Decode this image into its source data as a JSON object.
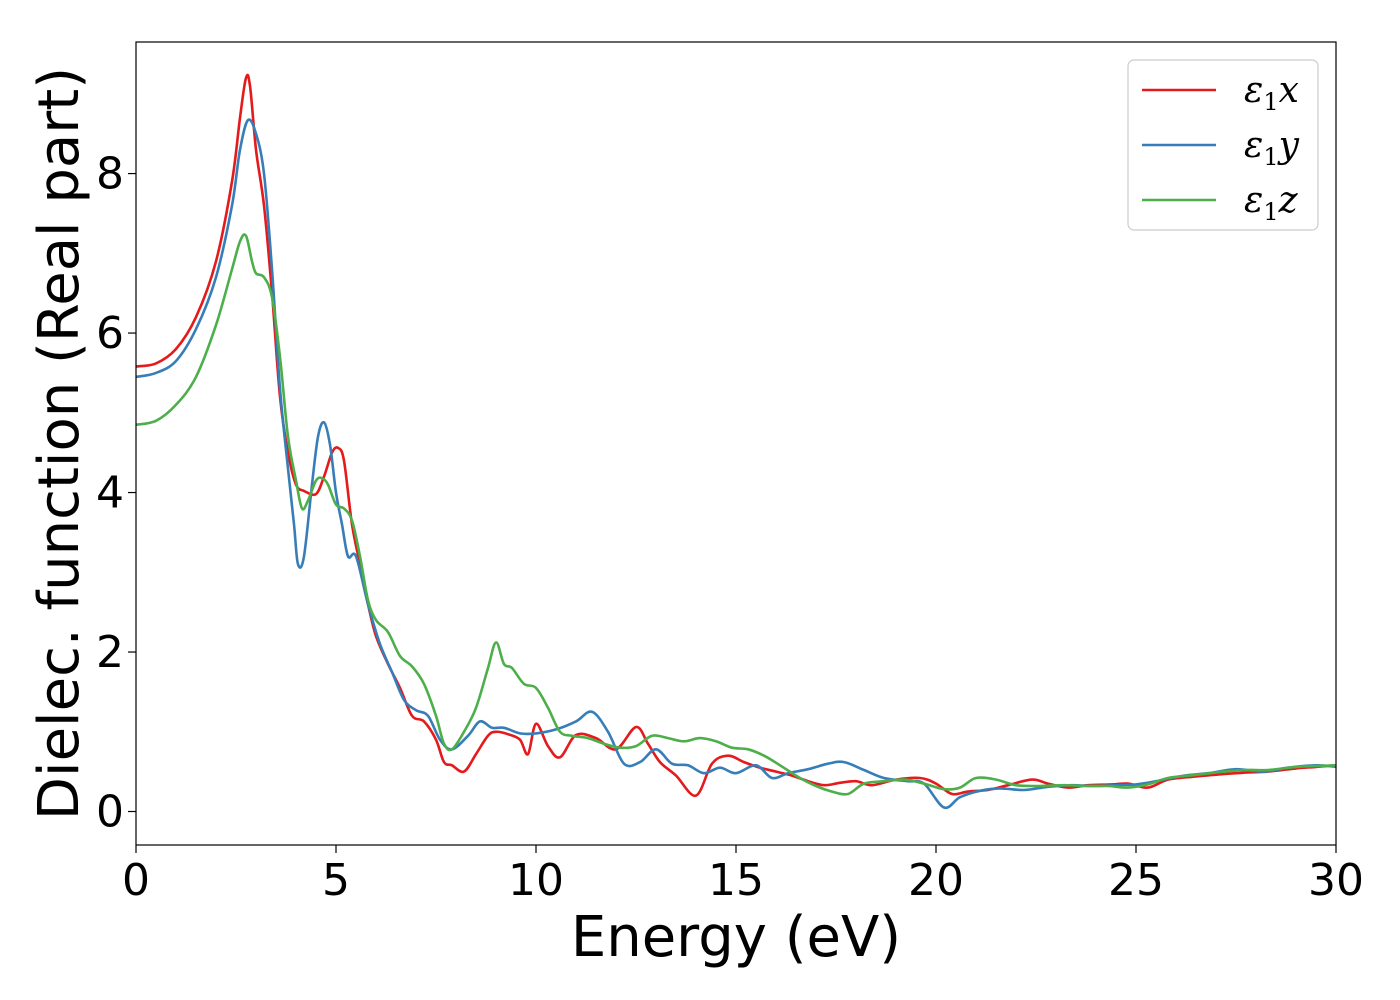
{
  "chart_data": {
    "type": "line",
    "xlabel": "Energy (eV)",
    "ylabel": "Dielec. function (Real part)",
    "xlim": [
      0,
      30
    ],
    "ylim": [
      -0.42,
      9.65
    ],
    "xticks": [
      0,
      5,
      10,
      15,
      20,
      25,
      30
    ],
    "yticks": [
      0,
      2,
      4,
      6,
      8
    ],
    "grid": false,
    "legend_position": "top-right",
    "series": [
      {
        "name": "ε1x",
        "legend_base": "ε",
        "legend_sub": "1",
        "legend_tail": "x",
        "color": "#e41a1c",
        "points": [
          [
            0,
            5.58
          ],
          [
            0.5,
            5.62
          ],
          [
            1,
            5.8
          ],
          [
            1.5,
            6.2
          ],
          [
            2,
            6.9
          ],
          [
            2.4,
            7.9
          ],
          [
            2.6,
            8.7
          ],
          [
            2.75,
            9.2
          ],
          [
            2.85,
            9.1
          ],
          [
            3.0,
            8.3
          ],
          [
            3.2,
            7.6
          ],
          [
            3.4,
            6.5
          ],
          [
            3.6,
            5.2
          ],
          [
            3.8,
            4.5
          ],
          [
            4.0,
            4.1
          ],
          [
            4.2,
            4.02
          ],
          [
            4.5,
            3.98
          ],
          [
            4.7,
            4.2
          ],
          [
            4.9,
            4.5
          ],
          [
            5.05,
            4.56
          ],
          [
            5.2,
            4.4
          ],
          [
            5.4,
            3.6
          ],
          [
            5.6,
            3.1
          ],
          [
            5.8,
            2.6
          ],
          [
            6.0,
            2.2
          ],
          [
            6.3,
            1.85
          ],
          [
            6.6,
            1.55
          ],
          [
            6.9,
            1.2
          ],
          [
            7.2,
            1.13
          ],
          [
            7.5,
            0.9
          ],
          [
            7.7,
            0.62
          ],
          [
            7.9,
            0.58
          ],
          [
            8.2,
            0.5
          ],
          [
            8.5,
            0.72
          ],
          [
            8.8,
            0.95
          ],
          [
            9.0,
            1.0
          ],
          [
            9.3,
            0.97
          ],
          [
            9.6,
            0.9
          ],
          [
            9.8,
            0.72
          ],
          [
            10.0,
            1.1
          ],
          [
            10.3,
            0.82
          ],
          [
            10.6,
            0.68
          ],
          [
            11.0,
            0.96
          ],
          [
            11.5,
            0.92
          ],
          [
            12.0,
            0.78
          ],
          [
            12.5,
            1.06
          ],
          [
            12.8,
            0.85
          ],
          [
            13.1,
            0.62
          ],
          [
            13.5,
            0.45
          ],
          [
            14.0,
            0.2
          ],
          [
            14.4,
            0.6
          ],
          [
            14.8,
            0.7
          ],
          [
            15.2,
            0.62
          ],
          [
            15.6,
            0.55
          ],
          [
            16.0,
            0.5
          ],
          [
            16.4,
            0.45
          ],
          [
            16.8,
            0.38
          ],
          [
            17.2,
            0.33
          ],
          [
            17.6,
            0.36
          ],
          [
            18.0,
            0.38
          ],
          [
            18.4,
            0.33
          ],
          [
            19.0,
            0.4
          ],
          [
            19.6,
            0.42
          ],
          [
            20.0,
            0.35
          ],
          [
            20.4,
            0.22
          ],
          [
            20.8,
            0.25
          ],
          [
            21.3,
            0.27
          ],
          [
            21.8,
            0.33
          ],
          [
            22.4,
            0.4
          ],
          [
            22.8,
            0.35
          ],
          [
            23.3,
            0.3
          ],
          [
            23.8,
            0.33
          ],
          [
            24.4,
            0.34
          ],
          [
            24.8,
            0.35
          ],
          [
            25.3,
            0.3
          ],
          [
            25.8,
            0.4
          ],
          [
            26.5,
            0.44
          ],
          [
            27.2,
            0.47
          ],
          [
            27.8,
            0.49
          ],
          [
            28.3,
            0.5
          ],
          [
            29.0,
            0.54
          ],
          [
            29.5,
            0.56
          ],
          [
            30,
            0.58
          ]
        ]
      },
      {
        "name": "ε1y",
        "legend_base": "ε",
        "legend_sub": "1",
        "legend_tail": "y",
        "color": "#377eb8",
        "points": [
          [
            0,
            5.45
          ],
          [
            0.5,
            5.5
          ],
          [
            1,
            5.65
          ],
          [
            1.5,
            6.05
          ],
          [
            2,
            6.7
          ],
          [
            2.4,
            7.6
          ],
          [
            2.6,
            8.3
          ],
          [
            2.8,
            8.67
          ],
          [
            3.0,
            8.5
          ],
          [
            3.2,
            8.0
          ],
          [
            3.4,
            6.8
          ],
          [
            3.6,
            5.3
          ],
          [
            3.8,
            4.3
          ],
          [
            3.95,
            3.6
          ],
          [
            4.05,
            3.1
          ],
          [
            4.2,
            3.2
          ],
          [
            4.4,
            4.1
          ],
          [
            4.55,
            4.7
          ],
          [
            4.7,
            4.88
          ],
          [
            4.85,
            4.6
          ],
          [
            5.0,
            4.0
          ],
          [
            5.15,
            3.6
          ],
          [
            5.3,
            3.2
          ],
          [
            5.5,
            3.2
          ],
          [
            5.8,
            2.6
          ],
          [
            6.1,
            2.1
          ],
          [
            6.4,
            1.75
          ],
          [
            6.7,
            1.4
          ],
          [
            7.0,
            1.27
          ],
          [
            7.3,
            1.2
          ],
          [
            7.6,
            0.9
          ],
          [
            7.9,
            0.78
          ],
          [
            8.3,
            0.95
          ],
          [
            8.6,
            1.13
          ],
          [
            8.9,
            1.05
          ],
          [
            9.2,
            1.05
          ],
          [
            9.6,
            0.98
          ],
          [
            10.0,
            0.98
          ],
          [
            10.5,
            1.03
          ],
          [
            11.0,
            1.13
          ],
          [
            11.4,
            1.25
          ],
          [
            11.8,
            1.0
          ],
          [
            12.2,
            0.6
          ],
          [
            12.6,
            0.62
          ],
          [
            13.0,
            0.78
          ],
          [
            13.4,
            0.6
          ],
          [
            13.8,
            0.58
          ],
          [
            14.2,
            0.48
          ],
          [
            14.6,
            0.55
          ],
          [
            15.0,
            0.48
          ],
          [
            15.5,
            0.58
          ],
          [
            15.9,
            0.42
          ],
          [
            16.3,
            0.48
          ],
          [
            16.8,
            0.53
          ],
          [
            17.3,
            0.6
          ],
          [
            17.7,
            0.62
          ],
          [
            18.2,
            0.52
          ],
          [
            18.7,
            0.42
          ],
          [
            19.3,
            0.38
          ],
          [
            19.7,
            0.35
          ],
          [
            20.2,
            0.05
          ],
          [
            20.6,
            0.18
          ],
          [
            21.1,
            0.26
          ],
          [
            21.6,
            0.29
          ],
          [
            22.2,
            0.27
          ],
          [
            22.8,
            0.31
          ],
          [
            23.4,
            0.33
          ],
          [
            23.9,
            0.32
          ],
          [
            24.5,
            0.33
          ],
          [
            25.0,
            0.34
          ],
          [
            25.5,
            0.38
          ],
          [
            26.2,
            0.45
          ],
          [
            26.8,
            0.48
          ],
          [
            27.5,
            0.53
          ],
          [
            28.2,
            0.5
          ],
          [
            28.8,
            0.55
          ],
          [
            29.5,
            0.58
          ],
          [
            30,
            0.56
          ]
        ]
      },
      {
        "name": "ε1z",
        "legend_base": "ε",
        "legend_sub": "1",
        "legend_tail": "z",
        "color": "#4daf4a",
        "points": [
          [
            0,
            4.85
          ],
          [
            0.5,
            4.9
          ],
          [
            1,
            5.1
          ],
          [
            1.5,
            5.45
          ],
          [
            2,
            6.1
          ],
          [
            2.4,
            6.8
          ],
          [
            2.6,
            7.15
          ],
          [
            2.75,
            7.22
          ],
          [
            2.9,
            6.9
          ],
          [
            3.0,
            6.75
          ],
          [
            3.2,
            6.7
          ],
          [
            3.4,
            6.45
          ],
          [
            3.6,
            5.7
          ],
          [
            3.8,
            4.7
          ],
          [
            4.0,
            4.15
          ],
          [
            4.15,
            3.8
          ],
          [
            4.3,
            3.9
          ],
          [
            4.5,
            4.15
          ],
          [
            4.65,
            4.18
          ],
          [
            4.8,
            4.1
          ],
          [
            5.0,
            3.85
          ],
          [
            5.2,
            3.8
          ],
          [
            5.4,
            3.65
          ],
          [
            5.6,
            3.2
          ],
          [
            5.8,
            2.65
          ],
          [
            6.0,
            2.4
          ],
          [
            6.3,
            2.25
          ],
          [
            6.6,
            1.95
          ],
          [
            6.9,
            1.82
          ],
          [
            7.2,
            1.6
          ],
          [
            7.5,
            1.2
          ],
          [
            7.7,
            0.85
          ],
          [
            7.9,
            0.78
          ],
          [
            8.2,
            1.0
          ],
          [
            8.5,
            1.3
          ],
          [
            8.8,
            1.8
          ],
          [
            9.0,
            2.12
          ],
          [
            9.2,
            1.85
          ],
          [
            9.4,
            1.8
          ],
          [
            9.7,
            1.6
          ],
          [
            10.0,
            1.55
          ],
          [
            10.3,
            1.3
          ],
          [
            10.6,
            1.0
          ],
          [
            10.9,
            0.95
          ],
          [
            11.3,
            0.92
          ],
          [
            11.7,
            0.85
          ],
          [
            12.1,
            0.8
          ],
          [
            12.5,
            0.82
          ],
          [
            12.9,
            0.95
          ],
          [
            13.3,
            0.92
          ],
          [
            13.7,
            0.88
          ],
          [
            14.1,
            0.92
          ],
          [
            14.5,
            0.88
          ],
          [
            14.9,
            0.8
          ],
          [
            15.3,
            0.78
          ],
          [
            15.7,
            0.7
          ],
          [
            16.1,
            0.58
          ],
          [
            16.6,
            0.42
          ],
          [
            17.0,
            0.32
          ],
          [
            17.4,
            0.25
          ],
          [
            17.8,
            0.22
          ],
          [
            18.2,
            0.35
          ],
          [
            18.7,
            0.38
          ],
          [
            19.2,
            0.4
          ],
          [
            19.7,
            0.35
          ],
          [
            20.2,
            0.28
          ],
          [
            20.6,
            0.3
          ],
          [
            21.0,
            0.42
          ],
          [
            21.5,
            0.4
          ],
          [
            22.0,
            0.33
          ],
          [
            22.6,
            0.32
          ],
          [
            23.2,
            0.33
          ],
          [
            23.7,
            0.32
          ],
          [
            24.3,
            0.32
          ],
          [
            24.8,
            0.3
          ],
          [
            25.3,
            0.34
          ],
          [
            25.8,
            0.42
          ],
          [
            26.5,
            0.46
          ],
          [
            27.2,
            0.5
          ],
          [
            27.8,
            0.52
          ],
          [
            28.3,
            0.52
          ],
          [
            29.0,
            0.56
          ],
          [
            29.5,
            0.57
          ],
          [
            30,
            0.58
          ]
        ]
      }
    ]
  }
}
